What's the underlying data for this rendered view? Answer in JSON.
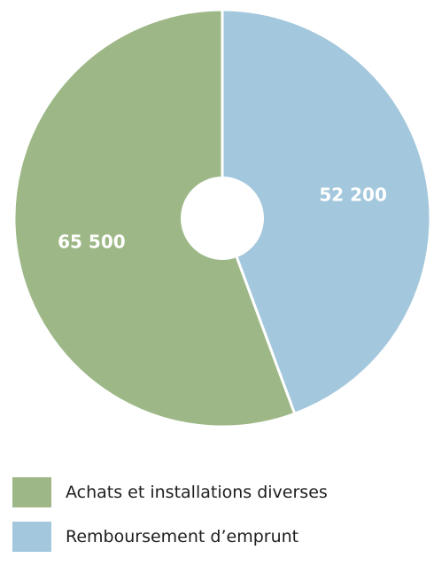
{
  "chart_data": {
    "type": "pie",
    "donut": true,
    "slices": [
      {
        "label": "Remboursement d’emprunt",
        "value": 52200,
        "display": "52 200",
        "color": "#a3c7dc"
      },
      {
        "label": "Achats et installations diverses",
        "value": 65500,
        "display": "65 500",
        "color": "#9db886"
      }
    ],
    "legend": [
      {
        "label": "Achats et installations diverses",
        "color": "#9db886"
      },
      {
        "label": "Remboursement d’emprunt",
        "color": "#a3c7dc"
      }
    ],
    "legend_placement": "bottom"
  }
}
